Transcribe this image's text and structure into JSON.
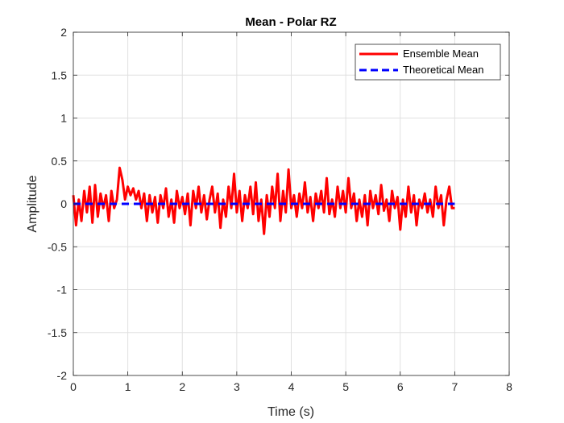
{
  "chart_data": {
    "type": "line",
    "title": "Mean - Polar RZ",
    "xlabel": "Time (s)",
    "ylabel": "Amplitude",
    "xlim": [
      0,
      8
    ],
    "ylim": [
      -2,
      2
    ],
    "xticks": [
      0,
      1,
      2,
      3,
      4,
      5,
      6,
      7,
      8
    ],
    "yticks": [
      -2,
      -1.5,
      -1,
      -0.5,
      0,
      0.5,
      1,
      1.5,
      2
    ],
    "xtick_labels": [
      "0",
      "1",
      "2",
      "3",
      "4",
      "5",
      "6",
      "7",
      "8"
    ],
    "ytick_labels": [
      "-2",
      "-1.5",
      "-1",
      "-0.5",
      "0",
      "0.5",
      "1",
      "1.5",
      "2"
    ],
    "grid": true,
    "legend_position": "top-right",
    "series": [
      {
        "name": "Ensemble Mean",
        "color": "#ff0000",
        "style": "solid",
        "x": [
          0,
          0.05,
          0.1,
          0.15,
          0.2,
          0.25,
          0.3,
          0.35,
          0.4,
          0.45,
          0.5,
          0.55,
          0.6,
          0.65,
          0.7,
          0.75,
          0.8,
          0.85,
          0.9,
          0.95,
          1.0,
          1.05,
          1.1,
          1.15,
          1.2,
          1.25,
          1.3,
          1.35,
          1.4,
          1.45,
          1.5,
          1.55,
          1.6,
          1.65,
          1.7,
          1.75,
          1.8,
          1.85,
          1.9,
          1.95,
          2.0,
          2.05,
          2.1,
          2.15,
          2.2,
          2.25,
          2.3,
          2.35,
          2.4,
          2.45,
          2.5,
          2.55,
          2.6,
          2.65,
          2.7,
          2.75,
          2.8,
          2.85,
          2.9,
          2.95,
          3.0,
          3.05,
          3.1,
          3.15,
          3.2,
          3.25,
          3.3,
          3.35,
          3.4,
          3.45,
          3.5,
          3.55,
          3.6,
          3.65,
          3.7,
          3.75,
          3.8,
          3.85,
          3.9,
          3.95,
          4.0,
          4.05,
          4.1,
          4.15,
          4.2,
          4.25,
          4.3,
          4.35,
          4.4,
          4.45,
          4.5,
          4.55,
          4.6,
          4.65,
          4.7,
          4.75,
          4.8,
          4.85,
          4.9,
          4.95,
          5.0,
          5.05,
          5.1,
          5.15,
          5.2,
          5.25,
          5.3,
          5.35,
          5.4,
          5.45,
          5.5,
          5.55,
          5.6,
          5.65,
          5.7,
          5.75,
          5.8,
          5.85,
          5.9,
          5.95,
          6.0,
          6.05,
          6.1,
          6.15,
          6.2,
          6.25,
          6.3,
          6.35,
          6.4,
          6.45,
          6.5,
          6.55,
          6.6,
          6.65,
          6.7,
          6.75,
          6.8,
          6.85,
          6.9,
          6.95,
          7.0
        ],
        "values": [
          0.1,
          -0.25,
          0.05,
          -0.2,
          0.15,
          -0.1,
          0.2,
          -0.22,
          0.22,
          -0.15,
          0.12,
          -0.05,
          0.1,
          -0.2,
          0.15,
          -0.05,
          0.05,
          0.42,
          0.28,
          0.05,
          0.2,
          0.1,
          0.18,
          0.05,
          0.15,
          -0.05,
          0.12,
          -0.2,
          0.1,
          -0.1,
          0.08,
          -0.22,
          0.1,
          -0.05,
          0.18,
          -0.15,
          0.05,
          -0.22,
          0.15,
          -0.05,
          0.08,
          -0.12,
          0.12,
          -0.25,
          0.15,
          -0.05,
          0.2,
          -0.1,
          0.1,
          -0.18,
          0.05,
          0.2,
          -0.1,
          0.12,
          -0.28,
          0.05,
          -0.15,
          0.2,
          -0.05,
          0.35,
          -0.1,
          0.15,
          -0.2,
          0.1,
          -0.05,
          0.2,
          -0.12,
          0.25,
          -0.2,
          0.05,
          -0.35,
          0.1,
          -0.15,
          0.2,
          -0.05,
          0.35,
          -0.2,
          0.15,
          -0.1,
          0.4,
          -0.05,
          0.1,
          -0.15,
          0.12,
          -0.05,
          0.25,
          -0.1,
          0.08,
          -0.2,
          0.12,
          -0.05,
          0.15,
          -0.1,
          0.3,
          -0.12,
          0.05,
          -0.15,
          0.2,
          -0.05,
          0.15,
          -0.1,
          0.3,
          -0.05,
          0.12,
          -0.2,
          0.05,
          -0.15,
          0.1,
          -0.25,
          0.15,
          -0.05,
          0.1,
          -0.12,
          0.22,
          -0.08,
          0.05,
          -0.2,
          0.15,
          -0.05,
          0.08,
          -0.3,
          0.05,
          -0.15,
          0.2,
          -0.1,
          0.1,
          -0.25,
          0.05,
          -0.05,
          0.12,
          -0.1,
          0.05,
          -0.15,
          0.2,
          -0.05,
          0.1,
          -0.25,
          0.05,
          0.2,
          -0.05,
          -0.05
        ]
      },
      {
        "name": "Theoretical Mean",
        "color": "#0000ff",
        "style": "dashed",
        "x": [
          0,
          7
        ],
        "values": [
          0,
          0
        ]
      }
    ]
  }
}
